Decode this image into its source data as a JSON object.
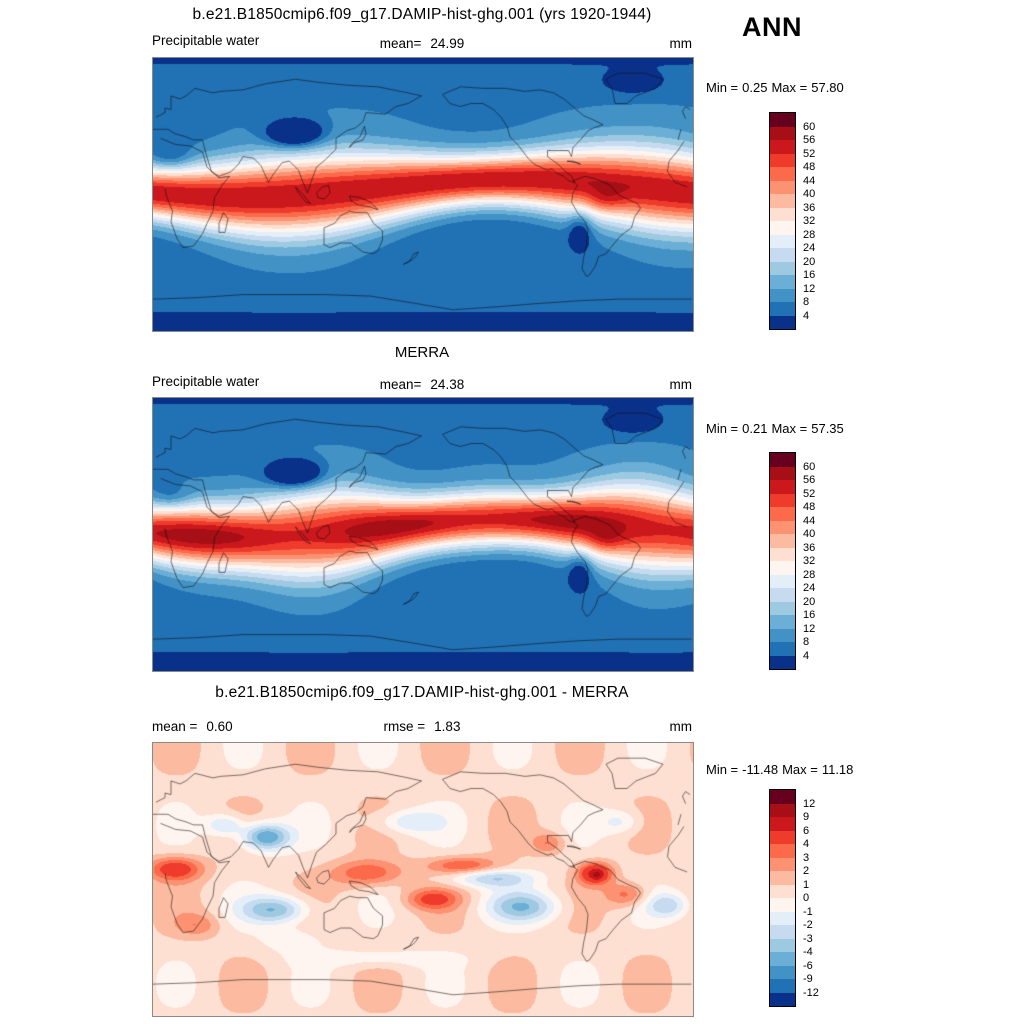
{
  "header": {
    "title": "b.e21.B1850cmip6.f09_g17.DAMIP-hist-ghg.001 (yrs 1920-1944)",
    "season": "ANN"
  },
  "panels": [
    {
      "variable": "Precipitable water",
      "mean_label": "mean=",
      "mean": "24.99",
      "units": "mm",
      "min_label": "Min =",
      "min": "0.25",
      "max_label": "Max =",
      "max": "57.80",
      "colorbar_ticks": [
        "60",
        "56",
        "52",
        "48",
        "44",
        "40",
        "36",
        "32",
        "28",
        "24",
        "20",
        "16",
        "12",
        "8",
        "4"
      ]
    },
    {
      "subtitle": "MERRA",
      "variable": "Precipitable water",
      "mean_label": "mean=",
      "mean": "24.38",
      "units": "mm",
      "min_label": "Min =",
      "min": "0.21",
      "max_label": "Max =",
      "max": "57.35",
      "colorbar_ticks": [
        "60",
        "56",
        "52",
        "48",
        "44",
        "40",
        "36",
        "32",
        "28",
        "24",
        "20",
        "16",
        "12",
        "8",
        "4"
      ]
    },
    {
      "subtitle": "b.e21.B1850cmip6.f09_g17.DAMIP-hist-ghg.001 - MERRA",
      "mean_label": "mean =",
      "mean": "0.60",
      "rmse_label": "rmse =",
      "rmse": "1.83",
      "units": "mm",
      "min_label": "Min =",
      "min": "-11.48",
      "max_label": "Max =",
      "max": "11.18",
      "colorbar_ticks": [
        "12",
        "9",
        "6",
        "4",
        "3",
        "2",
        "1",
        "0",
        "-1",
        "-2",
        "-3",
        "-4",
        "-6",
        "-9",
        "-12"
      ]
    }
  ],
  "palette": {
    "diverging_top_to_bottom": [
      "#67001f",
      "#a50f15",
      "#cb181d",
      "#ef3b2c",
      "#fb6a4a",
      "#fc9272",
      "#fcbba1",
      "#fee0d2",
      "#fff5f0",
      "#e3eef8",
      "#c6dbef",
      "#9ecae1",
      "#6baed6",
      "#4292c6",
      "#2171b5",
      "#0a3189"
    ]
  },
  "chart_data": [
    {
      "type": "heatmap",
      "title": "b.e21.B1850cmip6.f09_g17.DAMIP-hist-ghg.001 (yrs 1920-1944) - Precipitable water - ANN",
      "units": "mm",
      "stats": {
        "mean": 24.99,
        "min": 0.25,
        "max": 57.8
      },
      "contour_levels": [
        4,
        8,
        12,
        16,
        20,
        24,
        28,
        32,
        36,
        40,
        44,
        48,
        52,
        56,
        60
      ],
      "x_range": [
        0,
        360
      ],
      "y_range": [
        -90,
        90
      ],
      "legend_position": "right",
      "pattern": "zonal precipitable-water field: below 4 mm at poles and Tibet/Greenland, 52-60 mm tropical band, filled contours on global equirectangular map"
    },
    {
      "type": "heatmap",
      "title": "MERRA - Precipitable water - ANN",
      "units": "mm",
      "stats": {
        "mean": 24.38,
        "min": 0.21,
        "max": 57.35
      },
      "contour_levels": [
        4,
        8,
        12,
        16,
        20,
        24,
        28,
        32,
        36,
        40,
        44,
        48,
        52,
        56,
        60
      ],
      "x_range": [
        0,
        360
      ],
      "y_range": [
        -90,
        90
      ],
      "legend_position": "right",
      "pattern": "zonal precipitable-water field, nearly identical to model panel"
    },
    {
      "type": "heatmap",
      "title": "b.e21.B1850cmip6.f09_g17.DAMIP-hist-ghg.001 - MERRA difference - ANN",
      "units": "mm",
      "stats": {
        "mean": 0.6,
        "rmse": 1.83,
        "min": -11.48,
        "max": 11.18
      },
      "contour_levels": [
        -12,
        -9,
        -6,
        -4,
        -3,
        -2,
        -1,
        0,
        1,
        2,
        3,
        4,
        6,
        9,
        12
      ],
      "x_range": [
        0,
        360
      ],
      "y_range": [
        -90,
        90
      ],
      "legend_position": "right",
      "pattern": "near-zero pale background with blue deficits over south Asia, subtropical oceans and equatorial east Pacific; red excesses over Africa, tropical west Pacific and northern South America",
      "anomaly_centers": [
        [
          75,
          28,
          16,
          9,
          -6
        ],
        [
          48,
          36,
          12,
          7,
          -3
        ],
        [
          82,
          -20,
          22,
          9,
          -4.5
        ],
        [
          247,
          -18,
          24,
          10,
          -4
        ],
        [
          225,
          1,
          28,
          6,
          -3.5
        ],
        [
          343,
          -17,
          14,
          8,
          -3
        ],
        [
          170,
          38,
          22,
          8,
          -2.5
        ],
        [
          312,
          38,
          14,
          8,
          -2
        ],
        [
          15,
          7,
          18,
          8,
          4.5
        ],
        [
          143,
          4,
          24,
          9,
          3.5
        ],
        [
          186,
          -13,
          18,
          7,
          3.5
        ],
        [
          207,
          9,
          24,
          6,
          3.5
        ],
        [
          295,
          4,
          11,
          7,
          6
        ],
        [
          296,
          3,
          3,
          2.5,
          4.5
        ],
        [
          316,
          -10,
          14,
          8,
          3
        ],
        [
          264,
          24,
          11,
          7,
          2.5
        ],
        [
          93,
          -40,
          20,
          8,
          -1.5
        ],
        [
          150,
          -52,
          50,
          6,
          -1.4
        ],
        [
          30,
          -30,
          15,
          8,
          2
        ]
      ]
    }
  ]
}
